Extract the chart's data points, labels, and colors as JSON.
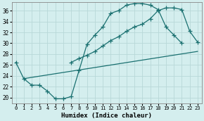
{
  "xlabel": "Humidex (Indice chaleur)",
  "background_color": "#d4eeee",
  "grid_color": "#b8d8d8",
  "line_color": "#1a7070",
  "xlim": [
    -0.5,
    23.5
  ],
  "ylim": [
    19.0,
    37.5
  ],
  "yticks": [
    20,
    22,
    24,
    26,
    28,
    30,
    32,
    34,
    36
  ],
  "xticks": [
    0,
    1,
    2,
    3,
    4,
    5,
    6,
    7,
    8,
    9,
    10,
    11,
    12,
    13,
    14,
    15,
    16,
    17,
    18,
    19,
    20,
    21,
    22,
    23
  ],
  "curve1_x": [
    0,
    1,
    2,
    3,
    4,
    5,
    6,
    7,
    8,
    9,
    10,
    11,
    12,
    13,
    14,
    15,
    16,
    17,
    18,
    19,
    20,
    21
  ],
  "curve1_y": [
    26.5,
    23.5,
    22.3,
    22.3,
    21.2,
    19.8,
    19.8,
    20.2,
    25.0,
    29.8,
    31.5,
    33.0,
    35.5,
    36.0,
    37.0,
    37.3,
    37.3,
    37.0,
    36.2,
    33.0,
    31.5,
    30.0
  ],
  "curve2_x": [
    7,
    8,
    9,
    10,
    11,
    12,
    13,
    14,
    15,
    16,
    17,
    18,
    19,
    20,
    21,
    22,
    23
  ],
  "curve2_y": [
    26.5,
    27.2,
    27.8,
    28.5,
    29.5,
    30.5,
    31.2,
    32.2,
    33.0,
    33.5,
    34.5,
    36.0,
    36.5,
    36.5,
    36.2,
    32.2,
    30.2
  ],
  "curve3_x": [
    1,
    23
  ],
  "curve3_y": [
    23.5,
    28.5
  ]
}
